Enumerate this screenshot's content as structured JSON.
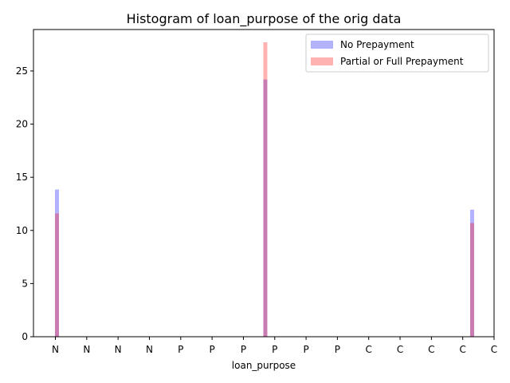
{
  "chart_data": {
    "type": "bar",
    "title": "Histogram of loan_purpose of the orig data",
    "xlabel": "loan_purpose",
    "ylabel": "",
    "x_tick_labels": [
      "N",
      "N",
      "N",
      "N",
      "P",
      "P",
      "P",
      "P",
      "P",
      "P",
      "C",
      "C",
      "C",
      "C",
      "C"
    ],
    "yticks": [
      0,
      5,
      10,
      15,
      20,
      25
    ],
    "ylim": [
      0,
      28.9
    ],
    "xlim": [
      -0.7,
      14.0
    ],
    "grid": false,
    "legend_position": "top-right",
    "series": [
      {
        "name": "No Prepayment",
        "color": "#0000ff",
        "opacity": 0.3,
        "bars": [
          {
            "x": 0.05,
            "value": 13.85
          },
          {
            "x": 6.7,
            "value": 24.2
          },
          {
            "x": 13.3,
            "value": 11.95
          }
        ]
      },
      {
        "name": "Partial or Full Prepayment",
        "color": "#ff0000",
        "opacity": 0.3,
        "bars": [
          {
            "x": 0.05,
            "value": 11.6
          },
          {
            "x": 6.7,
            "value": 27.7
          },
          {
            "x": 13.3,
            "value": 10.7
          }
        ]
      }
    ]
  }
}
